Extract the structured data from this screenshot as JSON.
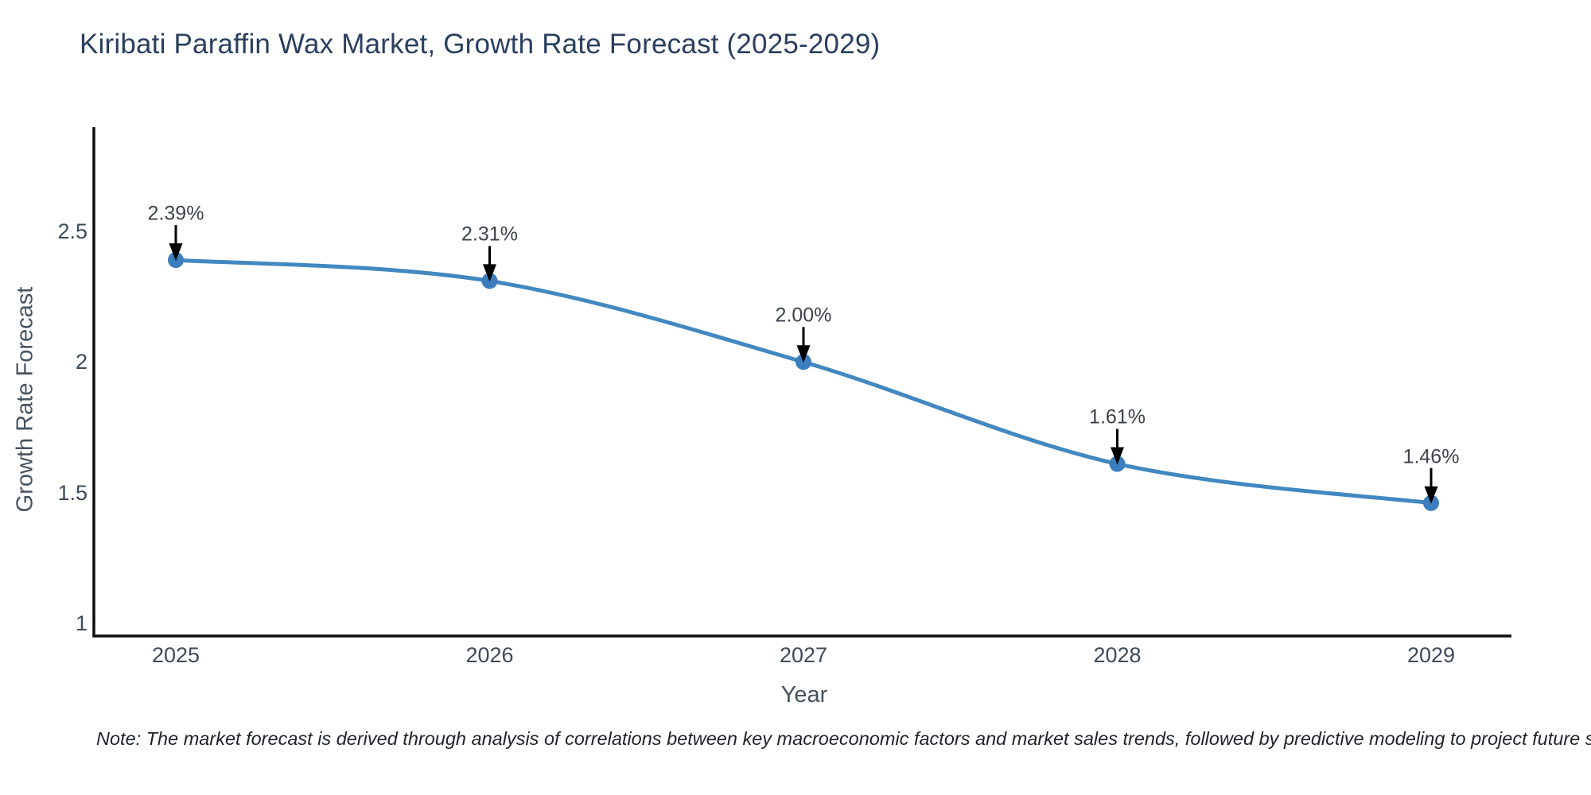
{
  "title": "Kiribati Paraffin Wax Market, Growth Rate Forecast (2025-2029)",
  "note": "Note: The market forecast is derived through analysis of correlations between key macroeconomic factors and market sales trends, followed by predictive modeling to project future sales",
  "chart_data": {
    "type": "line",
    "title": "Kiribati Paraffin Wax Market, Growth Rate Forecast (2025-2029)",
    "x": [
      2025,
      2026,
      2027,
      2028,
      2029
    ],
    "values": [
      2.39,
      2.31,
      2.0,
      1.61,
      1.46
    ],
    "point_labels": [
      "2.39%",
      "2.31%",
      "2.00%",
      "1.61%",
      "1.46%"
    ],
    "xlabel": "Year",
    "ylabel": "Growth Rate Forecast",
    "xticks": [
      "2025",
      "2026",
      "2027",
      "2028",
      "2029"
    ],
    "yticks": [
      "2.5",
      "2",
      "1.5",
      "1"
    ],
    "ytick_values": [
      2.5,
      2,
      1.5,
      1
    ],
    "ylim": [
      0.95,
      2.95
    ],
    "xlim": [
      2024.74,
      2029.27
    ],
    "grid": false,
    "legend": "none",
    "curve": "spline",
    "colors": {
      "line": "#4288c1",
      "marker": "#3c7dbd",
      "axis": "#0d0d0d",
      "annotation_arrow": "#000000",
      "title": "#2a3f5f",
      "tick_label": "#3e4a58"
    }
  }
}
